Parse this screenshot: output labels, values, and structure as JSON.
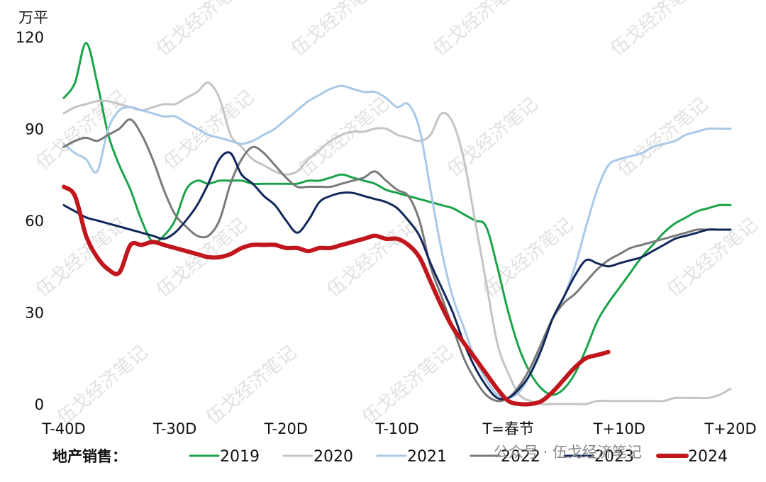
{
  "chart_data": {
    "type": "line",
    "unit_label": "万平",
    "x_tick_labels": [
      "T-40D",
      "T-30D",
      "T-20D",
      "T-10D",
      "T=春节",
      "T+10D",
      "T+20D"
    ],
    "x_tick_values": [
      -40,
      -30,
      -20,
      -10,
      0,
      10,
      20
    ],
    "xlim": [
      -40,
      20
    ],
    "y_ticks": [
      0,
      30,
      60,
      90,
      120
    ],
    "ylim": [
      0,
      120
    ],
    "grid": false,
    "legend_title": "地产销售：",
    "legend_position": "bottom",
    "series": [
      {
        "name": "2019",
        "color": "#1aa34a",
        "width": 3,
        "x": [
          -40,
          -39,
          -38,
          -37,
          -36,
          -35,
          -34,
          -33,
          -32,
          -31,
          -30,
          -29,
          -28,
          -27,
          -26,
          -25,
          -24,
          -23,
          -22,
          -21,
          -20,
          -19,
          -18,
          -17,
          -16,
          -15,
          -14,
          -13,
          -12,
          -11,
          -10,
          -9,
          -8,
          -7,
          -6,
          -5,
          -4,
          -3,
          -2,
          -1,
          0,
          1,
          2,
          3,
          4,
          5,
          6,
          7,
          8,
          9,
          10,
          11,
          12,
          13,
          14,
          15,
          16,
          17,
          18,
          19,
          20
        ],
        "y": [
          100,
          105,
          118,
          105,
          88,
          78,
          70,
          60,
          53,
          55,
          60,
          70,
          73,
          72,
          73,
          73,
          73,
          72,
          72,
          72,
          72,
          72,
          73,
          73,
          74,
          75,
          74,
          73,
          72,
          70,
          69,
          68,
          67,
          66,
          65,
          64,
          62,
          60,
          58,
          45,
          30,
          18,
          10,
          5,
          3,
          5,
          10,
          18,
          27,
          33,
          38,
          43,
          48,
          52,
          56,
          59,
          61,
          63,
          64,
          65,
          65
        ]
      },
      {
        "name": "2020",
        "color": "#c4c4c4",
        "width": 3,
        "x": [
          -40,
          -39,
          -38,
          -37,
          -36,
          -35,
          -34,
          -33,
          -32,
          -31,
          -30,
          -29,
          -28,
          -27,
          -26,
          -25,
          -24,
          -23,
          -22,
          -21,
          -20,
          -19,
          -18,
          -17,
          -16,
          -15,
          -14,
          -13,
          -12,
          -11,
          -10,
          -9,
          -8,
          -7,
          -6,
          -5,
          -4,
          -3,
          -2,
          -1,
          0,
          1,
          2,
          3,
          4,
          5,
          6,
          7,
          8,
          9,
          10,
          11,
          12,
          13,
          14,
          15,
          16,
          17,
          18,
          19,
          20
        ],
        "y": [
          95,
          97,
          98,
          99,
          99,
          98,
          97,
          96,
          97,
          98,
          98,
          100,
          102,
          105,
          100,
          88,
          84,
          80,
          78,
          76,
          75,
          76,
          80,
          83,
          86,
          88,
          89,
          89,
          90,
          90,
          88,
          87,
          86,
          88,
          95,
          92,
          80,
          60,
          40,
          20,
          10,
          3,
          1,
          0,
          0,
          0,
          0,
          0,
          1,
          1,
          1,
          1,
          1,
          1,
          1,
          2,
          2,
          2,
          2,
          3,
          5
        ]
      },
      {
        "name": "2021",
        "color": "#a9c9e8",
        "width": 3,
        "x": [
          -40,
          -39,
          -38,
          -37,
          -36,
          -35,
          -34,
          -33,
          -32,
          -31,
          -30,
          -29,
          -28,
          -27,
          -26,
          -25,
          -24,
          -23,
          -22,
          -21,
          -20,
          -19,
          -18,
          -17,
          -16,
          -15,
          -14,
          -13,
          -12,
          -11,
          -10,
          -9,
          -8,
          -7,
          -6,
          -5,
          -4,
          -3,
          -2,
          -1,
          0,
          1,
          2,
          3,
          4,
          5,
          6,
          7,
          8,
          9,
          10,
          11,
          12,
          13,
          14,
          15,
          16,
          17,
          18,
          19,
          20
        ],
        "y": [
          85,
          82,
          80,
          76,
          90,
          96,
          97,
          96,
          95,
          94,
          94,
          92,
          90,
          88,
          87,
          86,
          85,
          86,
          88,
          90,
          93,
          96,
          99,
          101,
          103,
          104,
          103,
          102,
          102,
          100,
          97,
          98,
          90,
          70,
          50,
          35,
          25,
          15,
          8,
          3,
          2,
          4,
          10,
          20,
          28,
          35,
          45,
          58,
          70,
          78,
          80,
          81,
          82,
          84,
          85,
          86,
          88,
          89,
          90,
          90,
          90
        ]
      },
      {
        "name": "2022",
        "color": "#7a7a7a",
        "width": 3,
        "x": [
          -40,
          -39,
          -38,
          -37,
          -36,
          -35,
          -34,
          -33,
          -32,
          -31,
          -30,
          -29,
          -28,
          -27,
          -26,
          -25,
          -24,
          -23,
          -22,
          -21,
          -20,
          -19,
          -18,
          -17,
          -16,
          -15,
          -14,
          -13,
          -12,
          -11,
          -10,
          -9,
          -8,
          -7,
          -6,
          -5,
          -4,
          -3,
          -2,
          -1,
          0,
          1,
          2,
          3,
          4,
          5,
          6,
          7,
          8,
          9,
          10,
          11,
          12,
          13,
          14,
          15,
          16,
          17,
          18,
          19,
          20
        ],
        "y": [
          84,
          86,
          87,
          86,
          88,
          90,
          93,
          88,
          80,
          70,
          62,
          58,
          55,
          55,
          60,
          72,
          80,
          84,
          82,
          78,
          74,
          71,
          71,
          71,
          71,
          72,
          73,
          74,
          76,
          73,
          70,
          68,
          60,
          45,
          35,
          25,
          15,
          8,
          3,
          1,
          2,
          6,
          12,
          20,
          28,
          33,
          36,
          40,
          44,
          47,
          49,
          51,
          52,
          53,
          54,
          55,
          56,
          57,
          57,
          57,
          57
        ]
      },
      {
        "name": "2023",
        "color": "#12275a",
        "width": 3,
        "x": [
          -40,
          -39,
          -38,
          -37,
          -36,
          -35,
          -34,
          -33,
          -32,
          -31,
          -30,
          -29,
          -28,
          -27,
          -26,
          -25,
          -24,
          -23,
          -22,
          -21,
          -20,
          -19,
          -18,
          -17,
          -16,
          -15,
          -14,
          -13,
          -12,
          -11,
          -10,
          -9,
          -8,
          -7,
          -6,
          -5,
          -4,
          -3,
          -2,
          -1,
          0,
          1,
          2,
          3,
          4,
          5,
          6,
          7,
          8,
          9,
          10,
          11,
          12,
          13,
          14,
          15,
          16,
          17,
          18,
          19,
          20
        ],
        "y": [
          65,
          63,
          61,
          60,
          59,
          58,
          57,
          56,
          55,
          54,
          56,
          60,
          65,
          72,
          80,
          82,
          75,
          72,
          68,
          65,
          60,
          56,
          60,
          66,
          68,
          69,
          69,
          68,
          67,
          66,
          64,
          60,
          55,
          46,
          38,
          30,
          20,
          12,
          6,
          2,
          2,
          5,
          10,
          18,
          28,
          35,
          42,
          47,
          46,
          45,
          46,
          47,
          48,
          50,
          52,
          54,
          55,
          56,
          57,
          57,
          57
        ]
      },
      {
        "name": "2024",
        "color": "#c0161c",
        "width": 6,
        "x": [
          -40,
          -39,
          -38,
          -37,
          -36,
          -35,
          -34,
          -33,
          -32,
          -31,
          -30,
          -29,
          -28,
          -27,
          -26,
          -25,
          -24,
          -23,
          -22,
          -21,
          -20,
          -19,
          -18,
          -17,
          -16,
          -15,
          -14,
          -13,
          -12,
          -11,
          -10,
          -9,
          -8,
          -7,
          -6,
          -5,
          -4,
          -3,
          -2,
          -1,
          0,
          1,
          2,
          3,
          4,
          5,
          6,
          7,
          8,
          9
        ],
        "y": [
          71,
          68,
          55,
          48,
          44,
          43,
          52,
          52,
          53,
          52,
          51,
          50,
          49,
          48,
          48,
          49,
          51,
          52,
          52,
          52,
          51,
          51,
          50,
          51,
          51,
          52,
          53,
          54,
          55,
          54,
          54,
          52,
          48,
          40,
          32,
          25,
          20,
          15,
          10,
          5,
          1,
          0,
          0,
          1,
          4,
          8,
          12,
          15,
          16,
          17
        ]
      }
    ]
  },
  "watermark_text": "伍戈经济笔记",
  "account_label": "公众号 · 伍戈经济笔记"
}
